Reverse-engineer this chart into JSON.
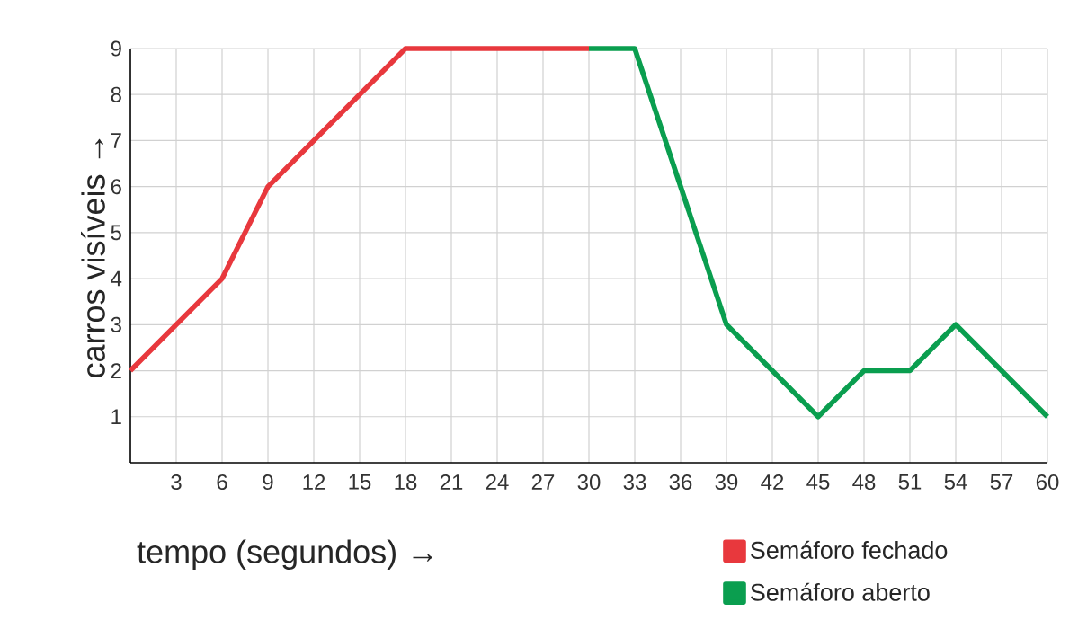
{
  "chart_data": {
    "type": "line",
    "xlabel": "tempo (segundos) →",
    "ylabel": "carros visíveis →",
    "xlim": [
      0,
      60
    ],
    "ylim": [
      0,
      9
    ],
    "xticks": [
      3,
      6,
      9,
      12,
      15,
      18,
      21,
      24,
      27,
      30,
      33,
      36,
      39,
      42,
      45,
      48,
      51,
      54,
      57,
      60
    ],
    "yticks": [
      1,
      2,
      3,
      4,
      5,
      6,
      7,
      8,
      9
    ],
    "grid": true,
    "legend": "bottom right",
    "marker": "none",
    "line_style": "solid",
    "series": [
      {
        "name": "Semáforo fechado",
        "color": "#e8383d",
        "x": [
          0,
          6,
          9,
          18,
          30
        ],
        "values": [
          2,
          4,
          6,
          9,
          9
        ]
      },
      {
        "name": "Semáforo aberto",
        "color": "#0a9e4f",
        "x": [
          30,
          33,
          39,
          45,
          48,
          51,
          54,
          60
        ],
        "values": [
          9,
          9,
          3,
          1,
          2,
          2,
          3,
          1
        ]
      }
    ]
  }
}
